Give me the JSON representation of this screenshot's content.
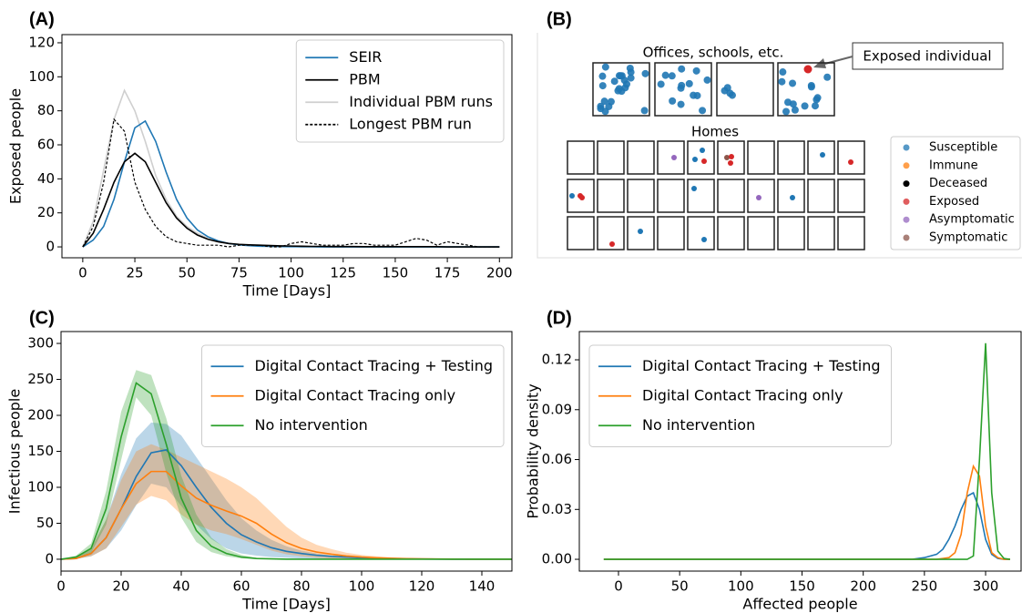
{
  "chart_data": [
    {
      "type": "line",
      "panel": "(A)",
      "xlabel": "Time [Days]",
      "ylabel": "Exposed people",
      "x": [
        0,
        5,
        10,
        15,
        20,
        25,
        30,
        35,
        40,
        45,
        50,
        55,
        60,
        65,
        70,
        75,
        80,
        85,
        90,
        95,
        100,
        105,
        110,
        115,
        120,
        125,
        130,
        135,
        140,
        145,
        150,
        155,
        160,
        165,
        170,
        175,
        180,
        185,
        190,
        195,
        200
      ],
      "series": [
        {
          "name": "SEIR",
          "color": "#1f77b4",
          "values": [
            0,
            4,
            12,
            28,
            50,
            70,
            74,
            62,
            44,
            28,
            17,
            10,
            6,
            3.5,
            2,
            1.2,
            0.7,
            0.4,
            0.3,
            0.2,
            0.1,
            0.1,
            0.1,
            0,
            0,
            0,
            0,
            0,
            0,
            0,
            0,
            0,
            0,
            0,
            0,
            0,
            0,
            0,
            0,
            0,
            0
          ]
        },
        {
          "name": "PBM",
          "color": "#000000",
          "values": [
            0,
            8,
            22,
            38,
            50,
            55,
            50,
            38,
            26,
            17,
            11,
            7,
            4.5,
            3,
            2,
            1.5,
            1.2,
            1,
            0.8,
            0.6,
            0.5,
            0.4,
            0.3,
            0.3,
            0.2,
            0.2,
            0.2,
            0.1,
            0.1,
            0.1,
            0.1,
            0.1,
            0.1,
            0.1,
            0.1,
            0,
            0,
            0,
            0,
            0,
            0
          ]
        },
        {
          "name": "Individual PBM runs",
          "color": "#cfcfcf",
          "values": [
            0,
            15,
            45,
            75,
            92,
            80,
            62,
            42,
            28,
            18,
            12,
            8,
            5,
            3,
            2,
            1.5,
            1,
            1,
            0.5,
            0.5,
            0.5,
            0,
            0,
            0,
            0,
            0,
            0,
            0,
            0,
            0,
            0,
            0,
            0,
            0,
            0,
            0,
            0,
            0,
            0,
            0,
            0
          ]
        },
        {
          "name": "Longest PBM run",
          "color": "#000000",
          "dash": "dashed",
          "values": [
            0,
            12,
            38,
            75,
            68,
            38,
            22,
            12,
            6,
            3,
            2,
            1,
            1,
            1,
            0,
            1,
            1,
            1,
            0,
            0,
            2,
            3,
            2,
            1,
            1,
            1,
            2,
            2,
            1,
            1,
            1,
            3,
            5,
            4,
            1,
            3,
            2,
            1,
            0,
            0,
            0
          ]
        }
      ],
      "xlim": [
        -10,
        206
      ],
      "ylim": [
        -6.4,
        124.8
      ],
      "xticks": [
        0,
        25,
        50,
        75,
        100,
        125,
        150,
        175,
        200
      ],
      "yticks": [
        0,
        20,
        40,
        60,
        80,
        100,
        120
      ],
      "legend": "upper right"
    },
    {
      "type": "line",
      "panel": "(C)",
      "xlabel": "Time [Days]",
      "ylabel": "Infectious people",
      "x": [
        0,
        5,
        10,
        15,
        20,
        25,
        30,
        35,
        40,
        45,
        50,
        55,
        60,
        65,
        70,
        75,
        80,
        85,
        90,
        95,
        100,
        105,
        110,
        115,
        120,
        125,
        130,
        135,
        140,
        145,
        150
      ],
      "series": [
        {
          "name": "Digital Contact Tracing + Testing",
          "color": "#1f77b4",
          "values": [
            0,
            1,
            8,
            30,
            70,
            115,
            148,
            152,
            130,
            100,
            72,
            50,
            34,
            24,
            16,
            11,
            8,
            5.5,
            4,
            3,
            2,
            1.5,
            1,
            0.6,
            0.4,
            0.2,
            0.1,
            0,
            0,
            0,
            0
          ],
          "lower": [
            0,
            0.5,
            4,
            15,
            40,
            75,
            105,
            100,
            74,
            48,
            28,
            15,
            8,
            5,
            3,
            2,
            1,
            0.5,
            0,
            0,
            0,
            0,
            0,
            0,
            0,
            0,
            0,
            0,
            0,
            0,
            0
          ],
          "upper": [
            0,
            2,
            15,
            55,
            118,
            168,
            190,
            188,
            172,
            142,
            112,
            82,
            57,
            40,
            27,
            18,
            12,
            8,
            5,
            3.5,
            2.5,
            1.8,
            1.2,
            0.8,
            0.5,
            0.3,
            0.2,
            0.1,
            0,
            0,
            0
          ]
        },
        {
          "name": "Digital Contact Tracing only",
          "color": "#ff7f0e",
          "values": [
            0,
            1,
            8,
            30,
            70,
            105,
            122,
            122,
            102,
            85,
            75,
            67,
            60,
            50,
            35,
            23,
            15,
            10,
            7,
            4.5,
            3,
            2,
            1.3,
            0.8,
            0.5,
            0.3,
            0.2,
            0.1,
            0,
            0,
            0
          ],
          "lower": [
            0,
            0.5,
            4,
            15,
            45,
            76,
            88,
            82,
            62,
            48,
            40,
            35,
            28,
            20,
            12,
            7,
            4,
            2,
            1,
            0.5,
            0.2,
            0,
            0,
            0,
            0,
            0,
            0,
            0,
            0,
            0,
            0
          ],
          "upper": [
            0,
            2,
            15,
            55,
            110,
            150,
            160,
            152,
            142,
            132,
            122,
            112,
            100,
            85,
            65,
            45,
            30,
            20,
            14,
            9,
            6,
            4,
            2.5,
            1.5,
            1,
            0.6,
            0.3,
            0.2,
            0.1,
            0,
            0
          ]
        },
        {
          "name": "No intervention",
          "color": "#2ca02c",
          "values": [
            0,
            3,
            15,
            70,
            170,
            245,
            230,
            160,
            85,
            40,
            18,
            8,
            3,
            1,
            0.5,
            0,
            0,
            0,
            0,
            0,
            0,
            0,
            0,
            0,
            0,
            0,
            0,
            0,
            0,
            0,
            0
          ],
          "lower": [
            0,
            2,
            9,
            48,
            138,
            225,
            200,
            120,
            58,
            24,
            10,
            4,
            1,
            0.3,
            0,
            0,
            0,
            0,
            0,
            0,
            0,
            0,
            0,
            0,
            0,
            0,
            0,
            0,
            0,
            0,
            0
          ],
          "upper": [
            0,
            5,
            22,
            95,
            205,
            263,
            256,
            196,
            116,
            62,
            30,
            14,
            6,
            2,
            1,
            0,
            0,
            0,
            0,
            0,
            0,
            0,
            0,
            0,
            0,
            0,
            0,
            0,
            0,
            0,
            0
          ]
        }
      ],
      "xlim": [
        0,
        150
      ],
      "ylim": [
        -16.5,
        316.5
      ],
      "xticks": [
        0,
        20,
        40,
        60,
        80,
        100,
        120,
        140
      ],
      "yticks": [
        0,
        50,
        100,
        150,
        200,
        250,
        300
      ],
      "legend": "upper right"
    },
    {
      "type": "line",
      "panel": "(D)",
      "xlabel": "Affected people",
      "ylabel": "Probability density",
      "x": [
        -12,
        0,
        50,
        100,
        150,
        200,
        240,
        250,
        260,
        265,
        270,
        275,
        280,
        285,
        290,
        295,
        300,
        305,
        310,
        315,
        320
      ],
      "series": [
        {
          "name": "Digital Contact Tracing + Testing",
          "color": "#1f77b4",
          "values": [
            0,
            0,
            0,
            0,
            0,
            0,
            0,
            0.001,
            0.003,
            0.006,
            0.012,
            0.02,
            0.03,
            0.038,
            0.04,
            0.03,
            0.012,
            0.003,
            0.0005,
            0,
            0
          ]
        },
        {
          "name": "Digital Contact Tracing only",
          "color": "#ff7f0e",
          "values": [
            0,
            0,
            0,
            0,
            0,
            0,
            0,
            0,
            0,
            0.0005,
            0.001,
            0.004,
            0.015,
            0.04,
            0.056,
            0.05,
            0.02,
            0.004,
            0.001,
            0,
            0
          ]
        },
        {
          "name": "No intervention",
          "color": "#2ca02c",
          "values": [
            0,
            0,
            0,
            0,
            0,
            0,
            0,
            0,
            0,
            0,
            0,
            0,
            0,
            0,
            0.002,
            0.06,
            0.13,
            0.04,
            0.005,
            0.0005,
            0
          ]
        }
      ],
      "xlim": [
        -32,
        329
      ],
      "ylim": [
        -0.0071,
        0.137
      ],
      "xticks": [
        0,
        50,
        100,
        150,
        200,
        250,
        300
      ],
      "yticks": [
        {
          "value": 0,
          "label": "0.00"
        },
        {
          "value": 0.03,
          "label": "0.03"
        },
        {
          "value": 0.06,
          "label": "0.06"
        },
        {
          "value": 0.09,
          "label": "0.09"
        },
        {
          "value": 0.12,
          "label": "0.12"
        }
      ],
      "legend": "upper left"
    }
  ],
  "diagram": {
    "panel": "(B)",
    "offices": "Offices, schools, etc.",
    "homes": "Homes",
    "callout": "Exposed individual",
    "legend": [
      {
        "name": "Susceptible",
        "color": "#1f77b4"
      },
      {
        "name": "Immune",
        "color": "#ff7f0e"
      },
      {
        "name": "Deceased",
        "color": "#000000"
      },
      {
        "name": "Exposed",
        "color": "#d62728"
      },
      {
        "name": "Asymptomatic",
        "color": "#9467bd"
      },
      {
        "name": "Symptomatic",
        "color": "#8c564b"
      }
    ]
  }
}
